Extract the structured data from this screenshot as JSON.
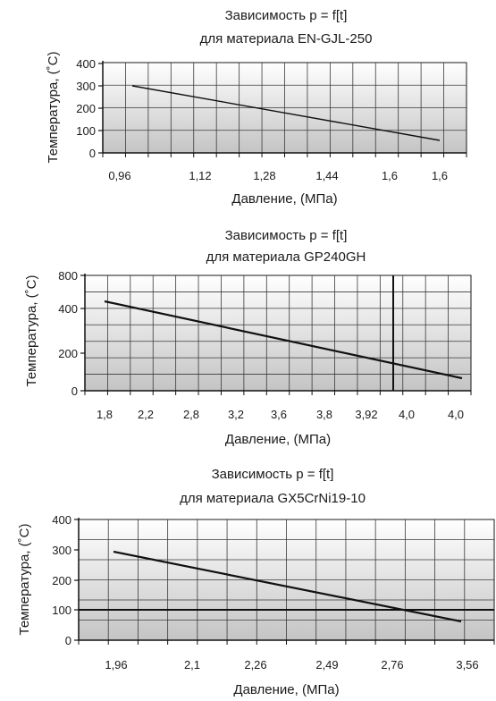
{
  "chart_data": [
    {
      "type": "line",
      "title": [
        "Зависимость p = f[t]",
        "для материала EN-GJL-250"
      ],
      "xlabel": "Давление, (МПа)",
      "ylabel": "Температура, (˚C)",
      "y_ticks": [
        "0",
        "100",
        "200",
        "300",
        "400"
      ],
      "x_ticks": [
        "0,96",
        "1,12",
        "1,28",
        "1,44",
        "1,6",
        "1,6"
      ],
      "ylim": [
        0,
        400
      ],
      "grid": true,
      "series": [
        {
          "x": [
            0.96,
            1.6
          ],
          "y": [
            300,
            55
          ]
        }
      ]
    },
    {
      "type": "line",
      "title": [
        "Зависимость p = f[t]",
        "для материала GP240GH"
      ],
      "xlabel": "Давление, (МПа)",
      "ylabel": "Температура, (˚C)",
      "y_ticks": [
        "0",
        "200",
        "400",
        "800"
      ],
      "x_ticks": [
        "1,8",
        "2,2",
        "2,8",
        "3,2",
        "3,6",
        "3,8",
        "3,92",
        "4,0",
        "4,0"
      ],
      "grid": true,
      "series": [
        {
          "x": [
            1.8,
            4.0
          ],
          "y": [
            480,
            70
          ]
        }
      ]
    },
    {
      "type": "line",
      "title": [
        "Зависимость p = f[t]",
        "для материала GX5CrNi19-10"
      ],
      "xlabel": "Давление, (МПа)",
      "ylabel": "Температура, (˚C)",
      "y_ticks": [
        "0",
        "100",
        "200",
        "300",
        "400"
      ],
      "x_ticks": [
        "1,96",
        "2,1",
        "2,26",
        "2,49",
        "2,76",
        "3,56"
      ],
      "ylim": [
        0,
        400
      ],
      "grid": true,
      "series": [
        {
          "x": [
            1.96,
            3.56
          ],
          "y": [
            300,
            60
          ]
        }
      ]
    }
  ]
}
